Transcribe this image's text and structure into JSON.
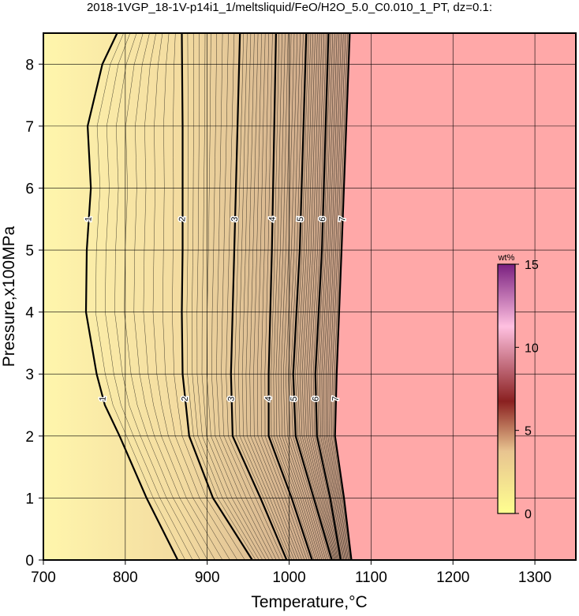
{
  "chart_data": {
    "type": "contour",
    "title": "2018-1VGP_18-1V-p14i1_1/meltsliquid/FeO/H2O_5.0_C0.010_1_PT, dz=0.1:",
    "x_label": "Temperature,°C",
    "y_label": "Pressure,x100MPa",
    "xlim": [
      700,
      1350
    ],
    "ylim": [
      0,
      8.5
    ],
    "xticks": [
      700,
      800,
      900,
      1000,
      1100,
      1200,
      1300
    ],
    "yticks": [
      0,
      1,
      2,
      3,
      4,
      5,
      6,
      7,
      8
    ],
    "grid": true,
    "contours": [
      {
        "level": 1,
        "x": [
          864,
          826,
          793,
          775,
          765,
          752,
          753,
          758,
          754,
          772,
          790
        ],
        "y": [
          0,
          1,
          2,
          2.5,
          3,
          4,
          5,
          6,
          7,
          8,
          8.5
        ]
      },
      {
        "level": 2,
        "x": [
          955,
          907,
          878,
          870,
          869,
          870,
          870,
          869
        ],
        "y": [
          0,
          1,
          2,
          3,
          4,
          5,
          7,
          8.5
        ]
      },
      {
        "level": 3,
        "x": [
          997,
          965,
          931,
          929,
          933,
          940
        ],
        "y": [
          0,
          1,
          2,
          3,
          5,
          8.5
        ]
      },
      {
        "level": 4,
        "x": [
          1028,
          1003,
          975,
          975,
          979,
          984
        ],
        "y": [
          0,
          1,
          2,
          3,
          5,
          8.5
        ]
      },
      {
        "level": 5,
        "x": [
          1052,
          1030,
          1008,
          1005,
          1013,
          1021
        ],
        "y": [
          0,
          1,
          2,
          3,
          5,
          8.5
        ]
      },
      {
        "level": 6,
        "x": [
          1063,
          1050,
          1034,
          1032,
          1040,
          1048
        ],
        "y": [
          0,
          1,
          2,
          3,
          5,
          8.5
        ]
      },
      {
        "level": 7,
        "x": [
          1076,
          1067,
          1056,
          1058,
          1064,
          1074
        ],
        "y": [
          0,
          1,
          2,
          3,
          5,
          8.5
        ]
      }
    ],
    "colorbar": {
      "label": "wt%",
      "lim": [
        0,
        15
      ],
      "ticks": [
        0,
        5,
        10,
        15
      ]
    }
  }
}
